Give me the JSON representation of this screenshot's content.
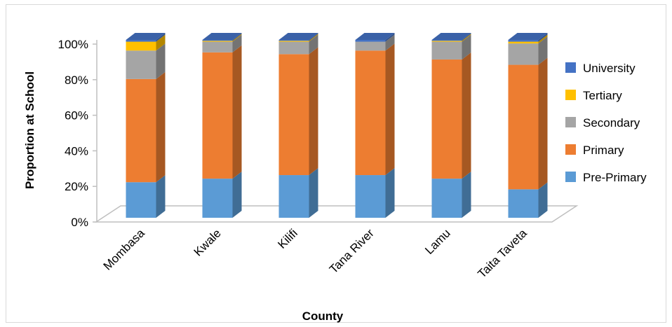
{
  "chart_data": {
    "type": "bar",
    "stacked": true,
    "percent": true,
    "three_d": true,
    "categories": [
      "Mombasa",
      "Kwale",
      "Kilifi",
      "Tana River",
      "Lamu",
      "Taita Taveta"
    ],
    "series": [
      {
        "name": "Pre-Primary",
        "color": "#5B9BD5",
        "values": [
          20,
          22,
          24,
          24,
          22,
          16
        ]
      },
      {
        "name": "Primary",
        "color": "#ED7D31",
        "values": [
          58,
          71,
          68,
          70,
          67,
          70
        ]
      },
      {
        "name": "Secondary",
        "color": "#A5A5A5",
        "values": [
          16,
          6,
          7,
          5,
          10,
          12
        ]
      },
      {
        "name": "Tertiary",
        "color": "#FFC000",
        "values": [
          5,
          0.5,
          0.5,
          0,
          0.5,
          1
        ]
      },
      {
        "name": "University",
        "color": "#4472C4",
        "values": [
          1,
          0.5,
          0.5,
          1,
          0.5,
          1
        ]
      }
    ],
    "ylim": [
      0,
      100
    ],
    "yticks": [
      "0%",
      "20%",
      "40%",
      "60%",
      "80%",
      "100%"
    ],
    "ylabel": "Proportion at School",
    "xlabel": "County",
    "legend": {
      "position": "right",
      "order": [
        "University",
        "Tertiary",
        "Secondary",
        "Primary",
        "Pre-Primary"
      ]
    },
    "grid": false
  }
}
